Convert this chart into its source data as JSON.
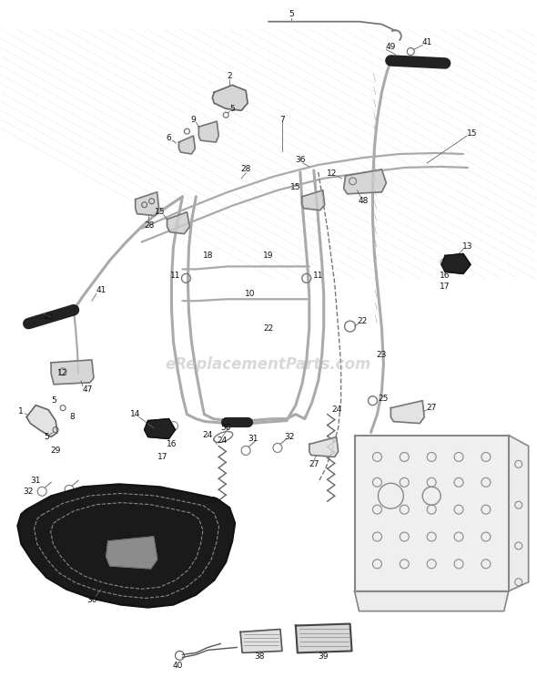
{
  "bg_color": "#ffffff",
  "fig_width": 5.9,
  "fig_height": 7.55,
  "watermark": "eReplacementParts.com",
  "watermark_color": "#bbbbbb",
  "watermark_alpha": 0.55,
  "line_color": "#888888",
  "dark_color": "#333333",
  "tube_color": "#aaaaaa",
  "tube_lw": 2.2,
  "frame_lw": 1.6,
  "label_fs": 6.5,
  "label_color": "#111111"
}
